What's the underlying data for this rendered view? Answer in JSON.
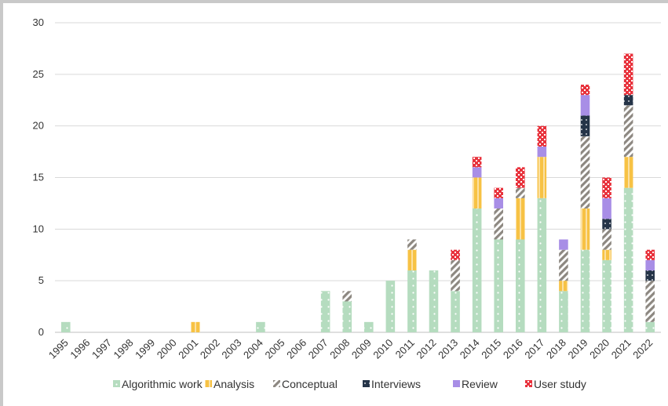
{
  "chart_data": {
    "type": "bar",
    "stacked": true,
    "categories": [
      "1995",
      "1996",
      "1997",
      "1998",
      "1999",
      "2000",
      "2001",
      "2002",
      "2003",
      "2004",
      "2005",
      "2006",
      "2007",
      "2008",
      "2009",
      "2010",
      "2011",
      "2012",
      "2013",
      "2014",
      "2015",
      "2016",
      "2017",
      "2018",
      "2019",
      "2020",
      "2021",
      "2022"
    ],
    "series": [
      {
        "name": "Algorithmic work",
        "color": "#b5dcbf",
        "pattern": "dots",
        "values": [
          1,
          0,
          0,
          0,
          0,
          0,
          0,
          0,
          0,
          1,
          0,
          0,
          4,
          3,
          1,
          5,
          6,
          6,
          4,
          12,
          9,
          9,
          13,
          4,
          8,
          7,
          14,
          1
        ]
      },
      {
        "name": "Analysis",
        "color": "#f7c244",
        "pattern": "vertical-lines",
        "values": [
          0,
          0,
          0,
          0,
          0,
          0,
          1,
          0,
          0,
          0,
          0,
          0,
          0,
          0,
          0,
          0,
          2,
          0,
          0,
          3,
          0,
          4,
          4,
          1,
          4,
          1,
          3,
          0
        ]
      },
      {
        "name": "Conceptual",
        "color": "#8d8881",
        "pattern": "diagonal-stripes",
        "values": [
          0,
          0,
          0,
          0,
          0,
          0,
          0,
          0,
          0,
          0,
          0,
          0,
          0,
          1,
          0,
          0,
          1,
          0,
          3,
          0,
          3,
          1,
          0,
          3,
          7,
          2,
          5,
          4
        ]
      },
      {
        "name": "Interviews",
        "color": "#253448",
        "pattern": "dots",
        "values": [
          0,
          0,
          0,
          0,
          0,
          0,
          0,
          0,
          0,
          0,
          0,
          0,
          0,
          0,
          0,
          0,
          0,
          0,
          0,
          0,
          0,
          0,
          0,
          0,
          2,
          1,
          1,
          1
        ]
      },
      {
        "name": "Review",
        "color": "#a88ee6",
        "pattern": "solid",
        "values": [
          0,
          0,
          0,
          0,
          0,
          0,
          0,
          0,
          0,
          0,
          0,
          0,
          0,
          0,
          0,
          0,
          0,
          0,
          0,
          1,
          1,
          0,
          1,
          1,
          2,
          2,
          0,
          1
        ]
      },
      {
        "name": "User study",
        "color": "#e8333d",
        "pattern": "checker",
        "values": [
          0,
          0,
          0,
          0,
          0,
          0,
          0,
          0,
          0,
          0,
          0,
          0,
          0,
          0,
          0,
          0,
          0,
          0,
          1,
          1,
          1,
          2,
          2,
          0,
          1,
          2,
          4,
          1
        ]
      }
    ],
    "ylim": [
      0,
      30
    ],
    "yticks": [
      "0",
      "5",
      "10",
      "15",
      "20",
      "25",
      "30"
    ],
    "grid": true,
    "legend_position": "bottom",
    "title": "",
    "xlabel": "",
    "ylabel": ""
  }
}
